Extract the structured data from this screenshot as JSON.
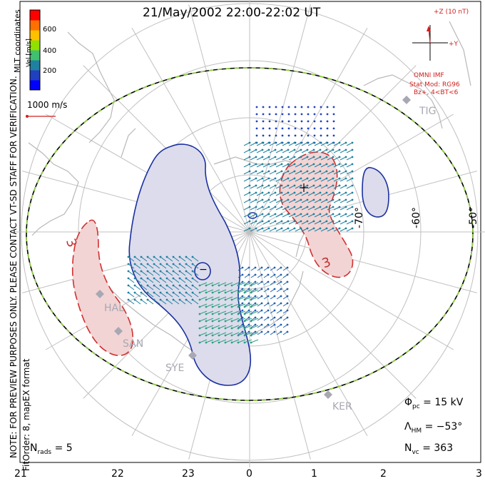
{
  "title": "21/May/2002 22:00-22:02 UT",
  "notice": {
    "line1": "NOTE: FOR PREVIEW PURPOSES ONLY. PLEASE CONTACT VT-SD STAFF FOR VERIFICATION.",
    "line2": "FitOrder: 8, mapEX format"
  },
  "coordinates_label": "MLT coordinates",
  "colorbar": {
    "label": "Vel [m/s]",
    "ticks": [
      "600",
      "400",
      "200"
    ],
    "colors": [
      "#ff0000",
      "#ff7000",
      "#ffc000",
      "#90e000",
      "#40c070",
      "#2080a0",
      "#2040c0",
      "#0000ff"
    ]
  },
  "velocity_scale": "1000 m/s",
  "mlt_hours": [
    "21",
    "22",
    "23",
    "0",
    "1",
    "2",
    "3"
  ],
  "latitude_labels": [
    "-70°",
    "-60°",
    "-50°"
  ],
  "stations": [
    "HAL",
    "SAN",
    "SYE",
    "KER",
    "TIG"
  ],
  "contour_labels": {
    "positive_a": "3",
    "positive_b": "3",
    "negative": "−"
  },
  "imf": {
    "z_label": "+Z (10 nT)",
    "y_label": "+Y",
    "source": "OMNI IMF",
    "stat_model": "Stat Mod: RG96",
    "condition": "Bz+, 4<BT<6"
  },
  "stats": {
    "phi_pc": {
      "symbol": "Φ",
      "sub": "pc",
      "value": "= 15 kV"
    },
    "lambda_hm": {
      "symbol": "Λ",
      "sub": "HM",
      "value": "= −53°"
    },
    "n_vc": {
      "symbol": "N",
      "sub": "vc",
      "value": "= 363"
    },
    "n_rads": {
      "symbol": "N",
      "sub": "rads",
      "value": "= 5"
    }
  },
  "colors": {
    "coastline": "#b8b8b8",
    "grid": "#c0c0c0",
    "negative_fill": "#dcdcec",
    "negative_line": "#1a30a0",
    "positive_fill": "#f2d4d4",
    "positive_line": "#d03030",
    "boundary_dash": "#90d040"
  }
}
